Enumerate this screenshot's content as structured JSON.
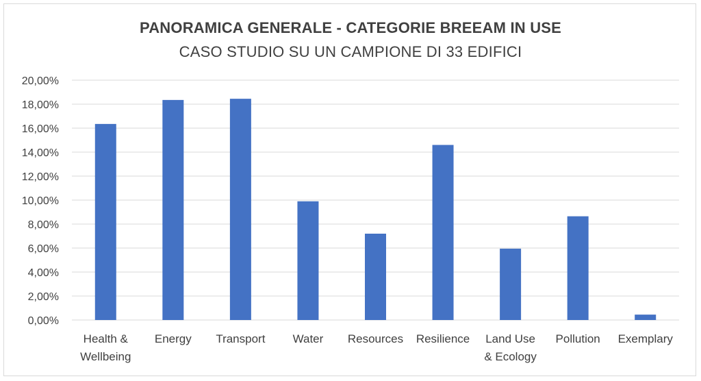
{
  "chart_data": {
    "type": "bar",
    "title": "PANORAMICA GENERALE - CATEGORIE BREEAM IN USE",
    "subtitle": "CASO STUDIO SU UN CAMPIONE DI 33 EDIFICI",
    "xlabel": "",
    "ylabel": "",
    "ylim": [
      0,
      0.2
    ],
    "grid": true,
    "bar_color": "#4472C4",
    "grid_color": "#d9d9d9",
    "y_ticks": [
      {
        "value": 0.0,
        "label": "0,00%"
      },
      {
        "value": 0.02,
        "label": "2,00%"
      },
      {
        "value": 0.04,
        "label": "4,00%"
      },
      {
        "value": 0.06,
        "label": "6,00%"
      },
      {
        "value": 0.08,
        "label": "8,00%"
      },
      {
        "value": 0.1,
        "label": "10,00%"
      },
      {
        "value": 0.12,
        "label": "12,00%"
      },
      {
        "value": 0.14,
        "label": "14,00%"
      },
      {
        "value": 0.16,
        "label": "16,00%"
      },
      {
        "value": 0.18,
        "label": "18,00%"
      },
      {
        "value": 0.2,
        "label": "20,00%"
      }
    ],
    "categories": [
      [
        "Health &",
        "Wellbeing"
      ],
      [
        "Energy"
      ],
      [
        "Transport"
      ],
      [
        "Water"
      ],
      [
        "Resources"
      ],
      [
        "Resilience"
      ],
      [
        "Land Use",
        "& Ecology"
      ],
      [
        "Pollution"
      ],
      [
        "Exemplary"
      ]
    ],
    "values": [
      0.1635,
      0.1835,
      0.1845,
      0.099,
      0.072,
      0.146,
      0.0595,
      0.0865,
      0.0045
    ]
  }
}
